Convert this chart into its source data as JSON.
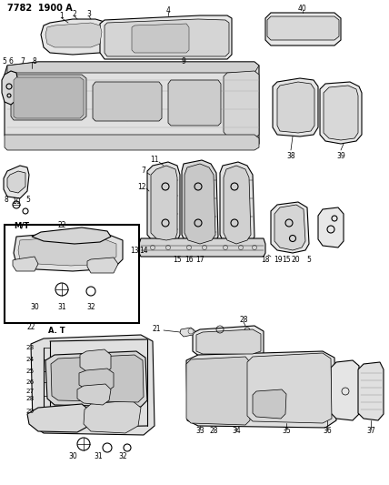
{
  "title": "7782  1900 A",
  "bg": "#ffffff",
  "lc": "#000000",
  "gray1": "#888888",
  "gray2": "#aaaaaa",
  "gray3": "#cccccc",
  "fig_w": 4.28,
  "fig_h": 5.33,
  "dpi": 100
}
